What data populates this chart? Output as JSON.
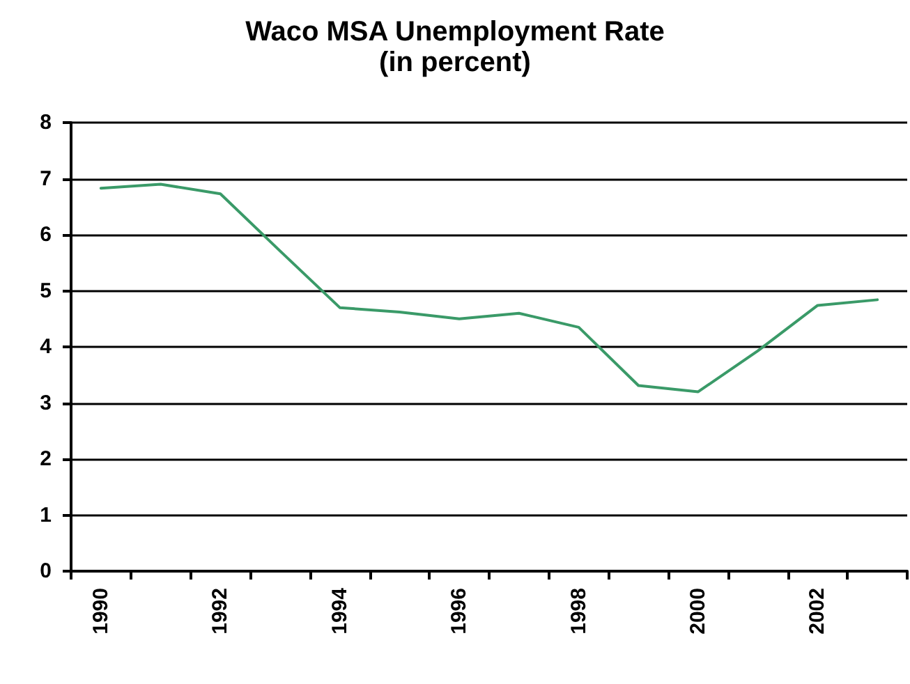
{
  "chart_data": {
    "type": "line",
    "title": "Waco MSA Unemployment Rate",
    "subtitle": "(in percent)",
    "categories": [
      "1990",
      null,
      "1992",
      null,
      "1994",
      null,
      "1996",
      null,
      "1998",
      null,
      "2000",
      null,
      "2002",
      null
    ],
    "series": [
      {
        "color": "#3a9a68",
        "values": [
          6.83,
          6.9,
          6.73,
          5.71,
          4.7,
          4.62,
          4.5,
          4.6,
          4.35,
          3.31,
          3.2,
          3.93,
          4.74,
          4.84
        ]
      }
    ],
    "ylim": [
      0,
      8
    ],
    "yticks": [
      0,
      1,
      2,
      3,
      4,
      5,
      6,
      7,
      8
    ],
    "grid": "y",
    "marker": "none",
    "line_style": "solid"
  }
}
